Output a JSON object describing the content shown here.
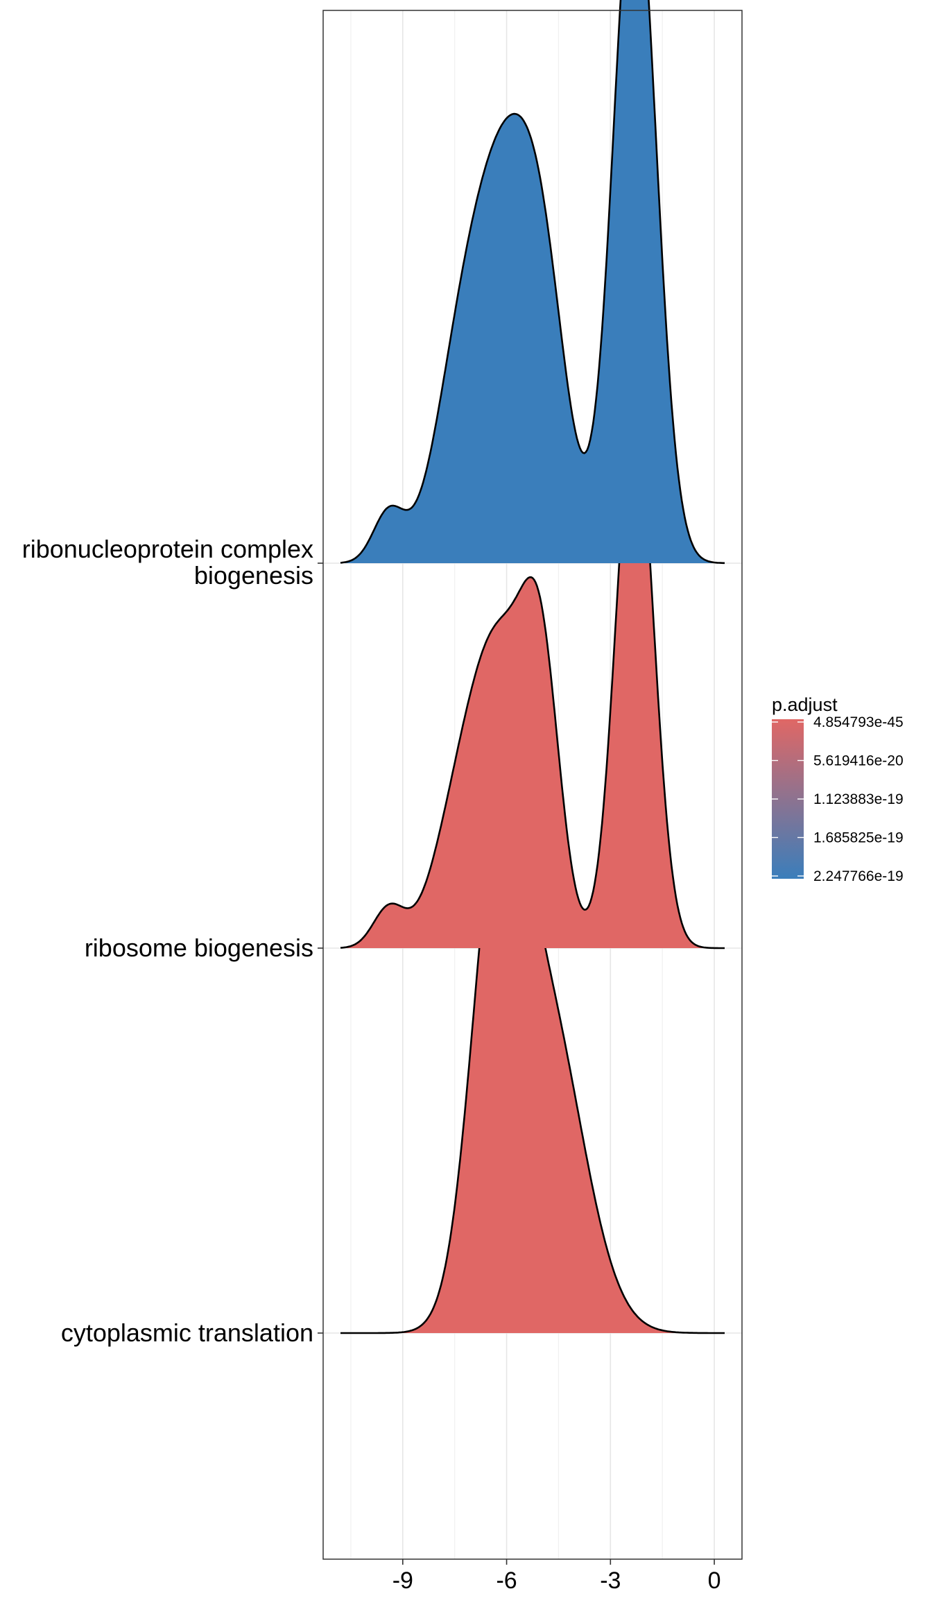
{
  "chart_data": {
    "type": "ridgeline",
    "xlabel": "",
    "ylabel": "",
    "xlim": [
      -11.3,
      0.8
    ],
    "x_ticks": [
      -9,
      -6,
      -3,
      0
    ],
    "x_tick_labels": [
      "-9",
      "-6",
      "-3",
      "0"
    ],
    "grid": true,
    "legend_position": "right",
    "categories": [
      {
        "label_lines": [
          "ribonucleoprotein complex",
          "biogenesis"
        ]
      },
      {
        "label_lines": [
          "ribosome biogenesis"
        ]
      },
      {
        "label_lines": [
          "cytoplasmic translation"
        ]
      }
    ],
    "series": [
      {
        "category_index": 0,
        "fill": "#3a7ebb",
        "x_range": [
          -10.8,
          0.3
        ],
        "components": [
          {
            "mean": -2.3,
            "sd": 0.62,
            "weight": 0.38
          },
          {
            "mean": -4.9,
            "sd": 0.7,
            "weight": 0.13
          },
          {
            "mean": -6.0,
            "sd": 0.85,
            "weight": 0.25
          },
          {
            "mean": -7.3,
            "sd": 0.8,
            "weight": 0.13
          },
          {
            "mean": -9.4,
            "sd": 0.45,
            "weight": 0.02
          }
        ]
      },
      {
        "category_index": 1,
        "fill": "#e06765",
        "x_range": [
          -10.8,
          0.3
        ],
        "components": [
          {
            "mean": -2.3,
            "sd": 0.55,
            "weight": 0.33
          },
          {
            "mean": -5.0,
            "sd": 0.55,
            "weight": 0.15
          },
          {
            "mean": -6.1,
            "sd": 0.8,
            "weight": 0.23
          },
          {
            "mean": -7.3,
            "sd": 0.8,
            "weight": 0.12
          },
          {
            "mean": -9.4,
            "sd": 0.45,
            "weight": 0.02
          }
        ]
      },
      {
        "category_index": 2,
        "fill": "#e06765",
        "x_range": [
          -10.8,
          0.3
        ],
        "components": [
          {
            "mean": -6.3,
            "sd": 0.75,
            "weight": 0.45
          },
          {
            "mean": -4.9,
            "sd": 1.1,
            "weight": 0.55
          }
        ]
      }
    ],
    "ridge_peak_heights_in_category_units": [
      1.43,
      1.39,
      1.81
    ],
    "legend": {
      "title": "p.adjust",
      "labels": [
        "4.854793e-45",
        "5.619416e-20",
        "1.123883e-19",
        "1.685825e-19",
        "2.247766e-19"
      ],
      "color_low": "#e06765",
      "color_high": "#3a7ebb"
    }
  }
}
